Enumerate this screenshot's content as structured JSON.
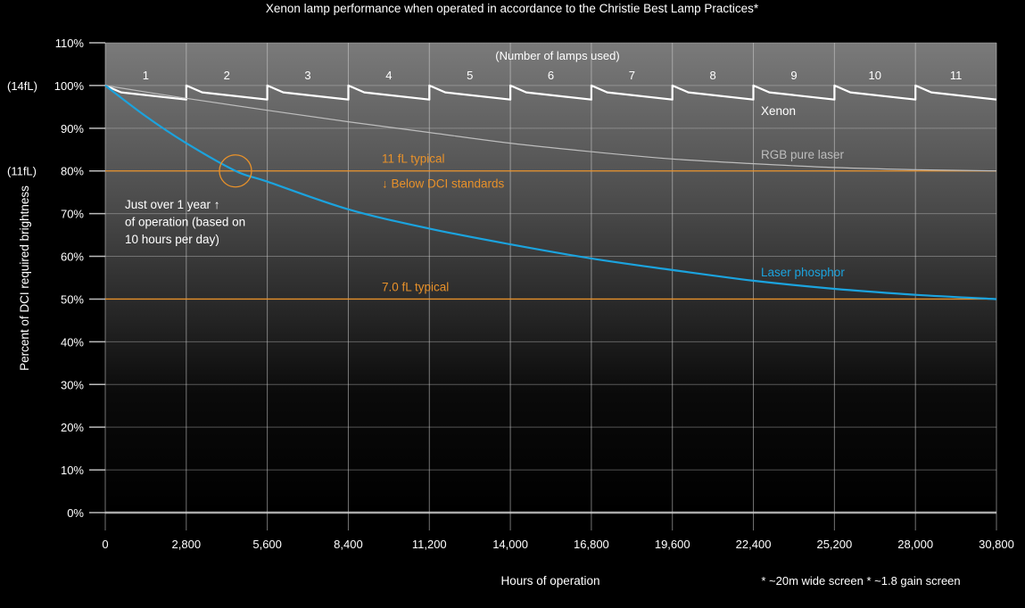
{
  "chart_data": {
    "type": "line",
    "title": "Xenon lamp performance when operated in accordance to the Christie Best Lamp Practices*",
    "xlabel": "Hours of operation",
    "ylabel": "Percent of DCI required brightness",
    "xlim": [
      0,
      30800
    ],
    "ylim": [
      0,
      110
    ],
    "grid": true,
    "x_ticks": [
      "0",
      "2,800",
      "5,600",
      "8,400",
      "11,200",
      "14,000",
      "16,800",
      "19,600",
      "22,400",
      "25,200",
      "28,000",
      "30,800"
    ],
    "y_ticks": [
      "0%",
      "10%",
      "20%",
      "30%",
      "40%",
      "50%",
      "60%",
      "70%",
      "80%",
      "90%",
      "100%",
      "110%"
    ],
    "y_side_labels": [
      {
        "value": 100,
        "text": "(14fL)"
      },
      {
        "value": 80,
        "text": "(11fL)"
      }
    ],
    "lamps_header": "(Number of lamps used)",
    "lamp_labels": [
      "1",
      "2",
      "3",
      "4",
      "5",
      "6",
      "7",
      "8",
      "9",
      "10",
      "11"
    ],
    "footnote": "* ~20m wide screen * ~1.8 gain screen",
    "series": [
      {
        "name": "Xenon",
        "color": "#ffffff",
        "x": [
          0,
          550,
          2800,
          2800,
          3350,
          5600,
          5600,
          6150,
          8400,
          8400,
          8950,
          11200,
          11200,
          11750,
          14000,
          14000,
          14550,
          16800,
          16800,
          17350,
          19600,
          19600,
          20150,
          22400,
          22400,
          22950,
          25200,
          25200,
          25750,
          28000,
          28000,
          28550,
          30800
        ],
        "y": [
          100,
          98.4,
          96.7,
          100,
          98.4,
          96.7,
          100,
          98.4,
          96.7,
          100,
          98.4,
          96.7,
          100,
          98.4,
          96.7,
          100,
          98.4,
          96.7,
          100,
          98.4,
          96.7,
          100,
          98.4,
          96.7,
          100,
          98.4,
          96.7,
          100,
          98.4,
          96.7,
          100,
          98.4,
          96.7
        ]
      },
      {
        "name": "RGB pure laser",
        "color": "#bdbdbd",
        "x": [
          0,
          2800,
          5600,
          8400,
          11200,
          14000,
          16800,
          19600,
          22400,
          25200,
          28000,
          30800
        ],
        "y": [
          100,
          97,
          94.2,
          91.5,
          89,
          86.5,
          84.5,
          82.8,
          81.7,
          80.8,
          80.3,
          80
        ]
      },
      {
        "name": "Laser phosphor",
        "color": "#1ba3de",
        "x": [
          0,
          1400,
          2800,
          4500,
          5600,
          8400,
          11200,
          14000,
          16800,
          19600,
          22400,
          25200,
          28000,
          30800
        ],
        "y": [
          100,
          92.8,
          86.5,
          80,
          77.5,
          71,
          66.5,
          62.8,
          59.5,
          56.8,
          54.3,
          52.4,
          51,
          50
        ]
      }
    ],
    "reference_lines": [
      {
        "value": 80,
        "color": "#e8912a",
        "labels": [
          "11 fL typical",
          "↓ Below DCI standards"
        ]
      },
      {
        "value": 50,
        "color": "#e8912a",
        "labels": [
          "7.0 fL typical"
        ]
      }
    ],
    "annotation": {
      "lines": [
        "Just over 1 year ↑",
        "of operation (based on",
        "10 hours per day)"
      ],
      "circle_at": {
        "x": 4500,
        "y": 80
      }
    }
  }
}
